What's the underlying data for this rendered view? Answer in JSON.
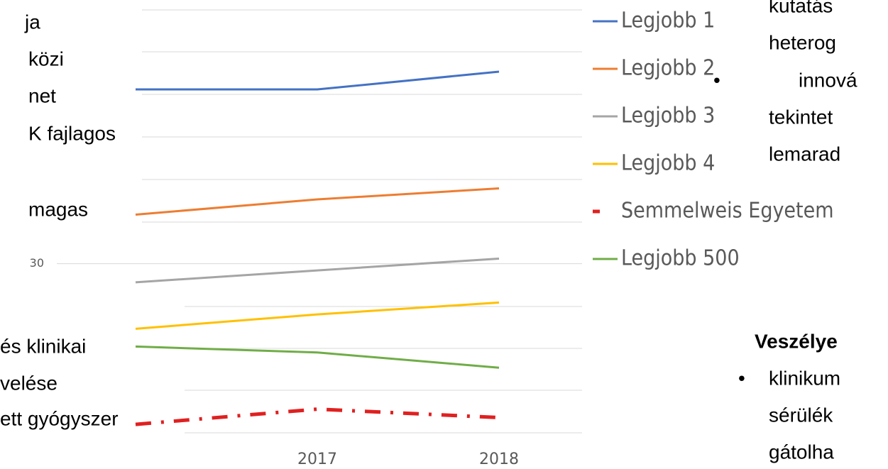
{
  "chart_data": {
    "type": "line",
    "categories": [
      null,
      "2017",
      "2018"
    ],
    "series": [
      {
        "name": "Legjobb 1",
        "color": "#4472c4",
        "values": [
          50.6,
          50.6,
          52.7
        ]
      },
      {
        "name": "Legjobb 2",
        "color": "#ed7d31",
        "values": [
          35.8,
          37.6,
          38.9
        ]
      },
      {
        "name": "Legjobb 3",
        "color": "#a5a5a5",
        "values": [
          27.8,
          29.2,
          30.6
        ]
      },
      {
        "name": "Legjobb 4",
        "color": "#ffc000",
        "values": [
          22.3,
          24.0,
          25.4
        ]
      },
      {
        "name": "Semmelweis Egyetem",
        "color": "#e02020",
        "dashed": true,
        "values": [
          11.0,
          12.8,
          11.8
        ]
      },
      {
        "name": "Legjobb 500",
        "color": "#70ad47",
        "values": [
          20.2,
          19.5,
          17.7
        ]
      }
    ],
    "ylim": [
      10,
      60
    ],
    "yticks": [
      30
    ]
  },
  "slide_text": {
    "left": [
      "ja",
      "közi",
      "net",
      "K fajlagos",
      "magas",
      "és klinikai",
      "velése",
      "ett gyógyszer"
    ],
    "right_top": [
      "kutatás",
      "heterog",
      "innová",
      "tekintet",
      "lemarad"
    ],
    "right_bottom_heading": "Veszélye",
    "right_bottom": [
      "klinikum",
      "sérülék",
      "gátolha"
    ]
  }
}
